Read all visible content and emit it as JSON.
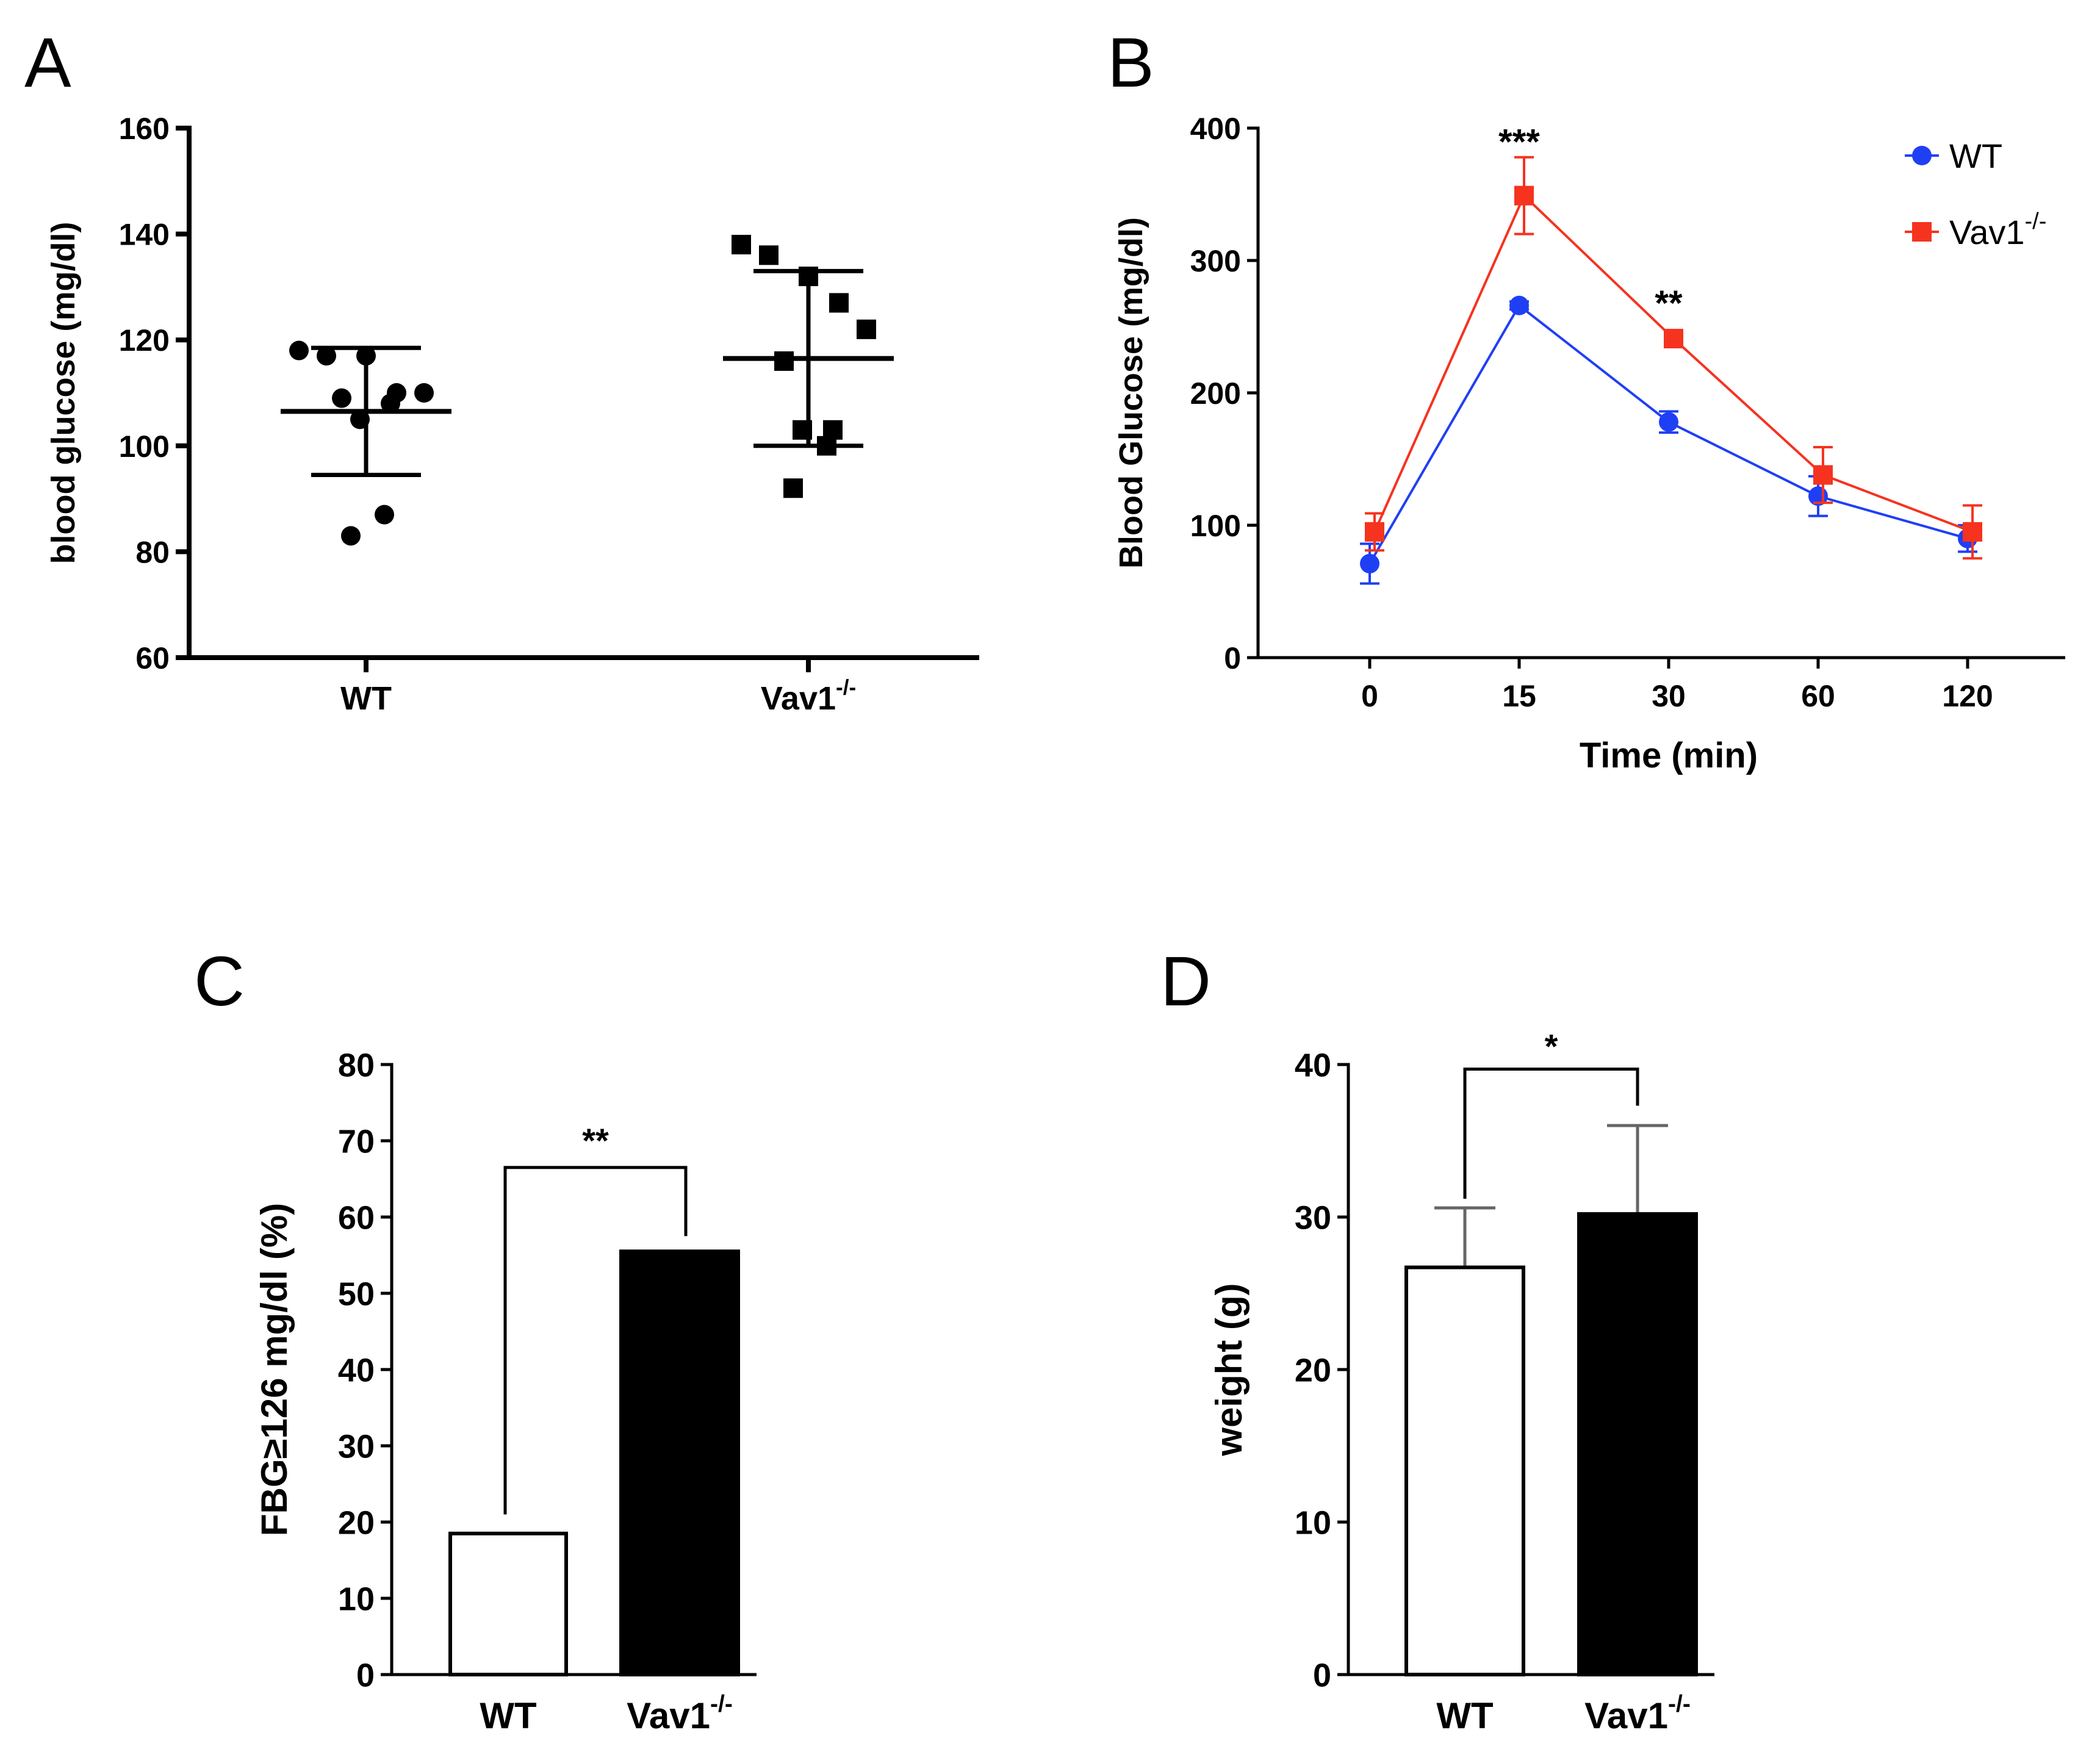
{
  "chart_data": [
    {
      "panel": "A",
      "type": "scatter",
      "title": "",
      "xlabel": "",
      "ylabel": "blood glucose (mg/dl)",
      "ylim": [
        60,
        160
      ],
      "yticks": [
        60,
        80,
        100,
        120,
        140,
        160
      ],
      "categories": [
        {
          "label": "WT",
          "sup": ""
        },
        {
          "label": "Vav1",
          "sup": "-/-"
        }
      ],
      "groups": [
        {
          "name": "WT",
          "marker": "circle",
          "values": [
            118,
            117,
            117,
            110,
            110,
            109,
            108,
            105,
            87,
            83
          ],
          "mean": 106.5,
          "sd_low": 94.5,
          "sd_high": 118.5
        },
        {
          "name": "Vav1-/-",
          "marker": "square",
          "values": [
            138,
            136,
            132,
            127,
            122,
            116,
            103,
            103,
            100,
            92
          ],
          "mean": 116.5,
          "sd_low": 100,
          "sd_high": 133
        }
      ]
    },
    {
      "panel": "B",
      "type": "line",
      "title": "",
      "xlabel": "Time (min)",
      "ylabel": "Blood Glucose (mg/dl)",
      "categories": [
        "0",
        "15",
        "30",
        "60",
        "120"
      ],
      "ylim": [
        0,
        400
      ],
      "yticks": [
        0,
        100,
        200,
        300,
        400
      ],
      "legend_position": "top-right",
      "series": [
        {
          "name": "WT",
          "sup": "",
          "color": "#1f3ff5",
          "marker": "circle",
          "values": [
            71,
            266,
            178,
            122,
            90
          ],
          "errors": [
            15,
            3,
            8,
            15,
            10
          ]
        },
        {
          "name": "Vav1",
          "sup": "-/-",
          "color": "#f5331f",
          "marker": "square",
          "values": [
            95,
            349,
            241,
            138,
            95
          ],
          "errors": [
            14,
            29,
            5,
            21,
            20
          ]
        }
      ],
      "annotations": [
        {
          "text": "***",
          "x": "15",
          "y": 392
        },
        {
          "text": "**",
          "x": "30",
          "y": 270
        }
      ]
    },
    {
      "panel": "C",
      "type": "bar",
      "title": "",
      "xlabel": "",
      "ylabel": "FBG≥126 mg/dl (%)",
      "ylim": [
        0,
        80
      ],
      "yticks": [
        0,
        10,
        20,
        30,
        40,
        50,
        60,
        70,
        80
      ],
      "categories": [
        {
          "label": "WT",
          "sup": ""
        },
        {
          "label": "Vav1",
          "sup": "-/-"
        }
      ],
      "values": [
        18.5,
        55.5
      ],
      "fills": [
        "#ffffff",
        "#000000"
      ],
      "significance": {
        "text": "**",
        "y": 66.5
      }
    },
    {
      "panel": "D",
      "type": "bar",
      "title": "",
      "xlabel": "",
      "ylabel": "weight (g)",
      "ylim": [
        0,
        40
      ],
      "yticks": [
        0,
        10,
        20,
        30,
        40
      ],
      "categories": [
        {
          "label": "WT",
          "sup": ""
        },
        {
          "label": "Vav1",
          "sup": "-/-"
        }
      ],
      "values": [
        26.7,
        30.2
      ],
      "errors": [
        3.9,
        5.8
      ],
      "fills": [
        "#ffffff",
        "#000000"
      ],
      "significance": {
        "text": "*",
        "y": 39.7
      }
    }
  ]
}
